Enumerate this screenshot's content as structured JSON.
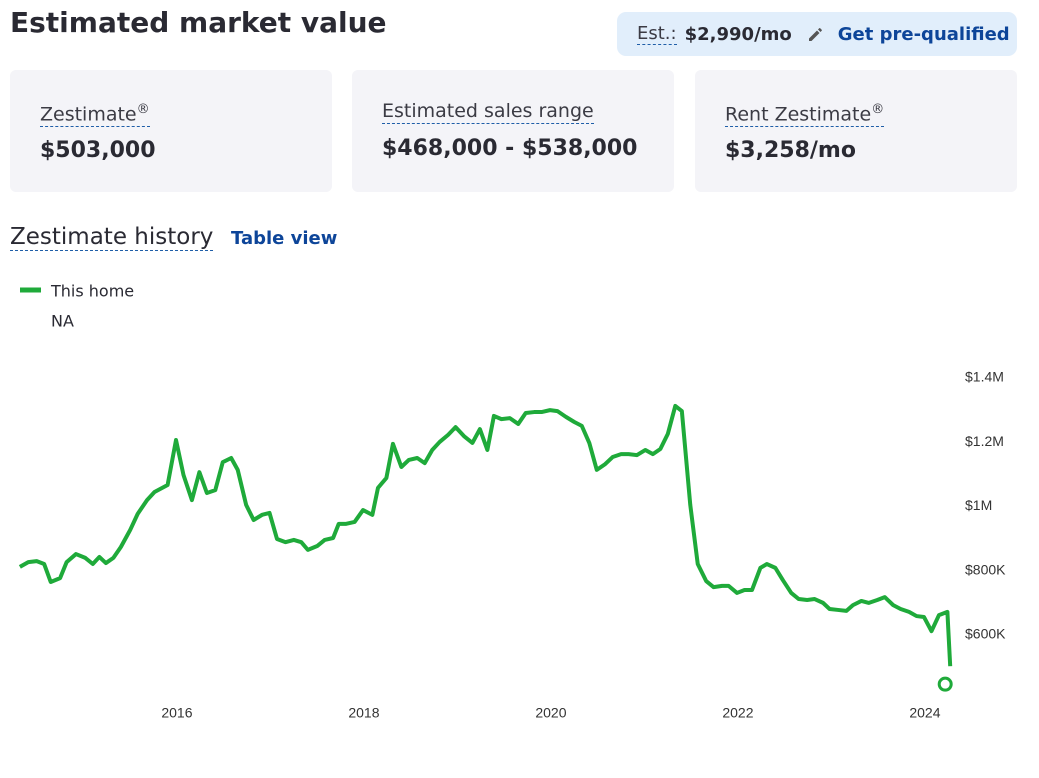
{
  "header": {
    "title": "Estimated market value",
    "est_label": "Est.:",
    "est_value": "$2,990/mo",
    "cta": "Get pre-qualified"
  },
  "cards": [
    {
      "label": "Zestimate",
      "sup": "®",
      "value": "$503,000"
    },
    {
      "label": "Estimated sales range",
      "value": "$468,000 - $538,000"
    },
    {
      "label": "Rent Zestimate",
      "sup": "®",
      "value": "$3,258/mo"
    }
  ],
  "history": {
    "title": "Zestimate history",
    "link": "Table view"
  },
  "chart_data": {
    "type": "line",
    "legend_note": "NA",
    "x": [
      2014.32,
      2014.41,
      2014.5,
      2014.58,
      2014.65,
      2014.75,
      2014.82,
      2014.92,
      2015.02,
      2015.1,
      2015.17,
      2015.24,
      2015.32,
      2015.4,
      2015.5,
      2015.58,
      2015.68,
      2015.76,
      2015.9,
      2015.99,
      2016.07,
      2016.16,
      2016.24,
      2016.32,
      2016.41,
      2016.49,
      2016.58,
      2016.65,
      2016.74,
      2016.82,
      2016.91,
      2016.99,
      2017.07,
      2017.16,
      2017.25,
      2017.33,
      2017.4,
      2017.5,
      2017.58,
      2017.67,
      2017.73,
      2017.81,
      2017.9,
      2017.99,
      2018.09,
      2018.15,
      2018.24,
      2018.31,
      2018.4,
      2018.48,
      2018.57,
      2018.65,
      2018.73,
      2018.81,
      2018.9,
      2018.98,
      2019.07,
      2019.16,
      2019.24,
      2019.32,
      2019.39,
      2019.47,
      2019.56,
      2019.65,
      2019.73,
      2019.82,
      2019.9,
      2019.99,
      2020.07,
      2020.16,
      2020.25,
      2020.33,
      2020.41,
      2020.49,
      2020.58,
      2020.66,
      2020.75,
      2020.83,
      2020.92,
      2021.01,
      2021.09,
      2021.17,
      2021.25,
      2021.33,
      2021.4,
      2021.49,
      2021.57,
      2021.66,
      2021.74,
      2021.83,
      2021.9,
      2021.99,
      2022.07,
      2022.15,
      2022.24,
      2022.31,
      2022.4,
      2022.48,
      2022.57,
      2022.65,
      2022.74,
      2022.82,
      2022.91,
      2022.98,
      2023.07,
      2023.16,
      2023.23,
      2023.32,
      2023.4,
      2023.49,
      2023.57,
      2023.66,
      2023.74,
      2023.83,
      2023.91,
      2023.99,
      2024.07,
      2024.15,
      2024.24,
      2024.27
    ],
    "series": [
      {
        "name": "This home",
        "color": "#1faa3a",
        "values": [
          812000,
          827000,
          830000,
          821000,
          765000,
          777000,
          827000,
          852000,
          840000,
          821000,
          843000,
          824000,
          840000,
          874000,
          927000,
          977000,
          1020000,
          1045000,
          1067000,
          1207000,
          1098000,
          1020000,
          1107000,
          1042000,
          1051000,
          1138000,
          1151000,
          1114000,
          1005000,
          958000,
          974000,
          980000,
          899000,
          889000,
          896000,
          889000,
          865000,
          877000,
          896000,
          902000,
          946000,
          946000,
          952000,
          989000,
          974000,
          1058000,
          1089000,
          1195000,
          1123000,
          1145000,
          1151000,
          1135000,
          1176000,
          1201000,
          1223000,
          1247000,
          1219000,
          1198000,
          1241000,
          1176000,
          1282000,
          1272000,
          1275000,
          1257000,
          1291000,
          1294000,
          1294000,
          1300000,
          1297000,
          1279000,
          1263000,
          1251000,
          1198000,
          1114000,
          1132000,
          1154000,
          1163000,
          1163000,
          1160000,
          1176000,
          1163000,
          1179000,
          1226000,
          1313000,
          1297000,
          1005000,
          821000,
          768000,
          749000,
          753000,
          753000,
          731000,
          740000,
          740000,
          809000,
          821000,
          809000,
          771000,
          731000,
          712000,
          709000,
          712000,
          700000,
          681000,
          678000,
          675000,
          693000,
          706000,
          700000,
          709000,
          718000,
          693000,
          681000,
          672000,
          659000,
          656000,
          612000,
          662000,
          672000,
          503000
        ]
      }
    ],
    "xlim": [
      2014.3,
      2024.3
    ],
    "xticks": [
      2016,
      2018,
      2020,
      2022,
      2024
    ],
    "ylim": [
      450000,
      1400000
    ],
    "yticks": [
      {
        "value": 600000,
        "label": "$600K"
      },
      {
        "value": 800000,
        "label": "$800K"
      },
      {
        "value": 1000000,
        "label": "$1M"
      },
      {
        "value": 1200000,
        "label": "$1.2M"
      },
      {
        "value": 1400000,
        "label": "$1.4M"
      }
    ],
    "grid": false
  }
}
